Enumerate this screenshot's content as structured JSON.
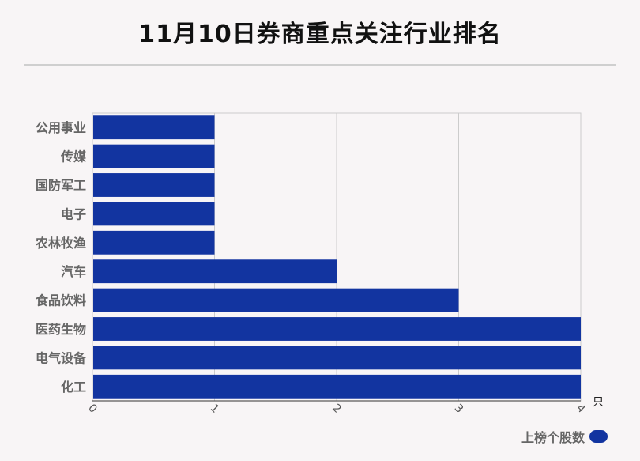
{
  "title": "11月10日券商重点关注行业排名",
  "chart_data": {
    "type": "bar",
    "orientation": "horizontal",
    "categories": [
      "公用事业",
      "传媒",
      "国防军工",
      "电子",
      "农林牧渔",
      "汽车",
      "食品饮料",
      "医药生物",
      "电气设备",
      "化工"
    ],
    "series": [
      {
        "name": "上榜个股数",
        "values": [
          1,
          1,
          1,
          1,
          1,
          2,
          3,
          4,
          4,
          4
        ]
      }
    ],
    "xlim": [
      0,
      4
    ],
    "xticks": [
      "0",
      "1",
      "2",
      "3",
      "4"
    ],
    "x_unit": "只",
    "grid": true,
    "legend_position": "bottom-right",
    "bar_color": "#1234a0"
  }
}
